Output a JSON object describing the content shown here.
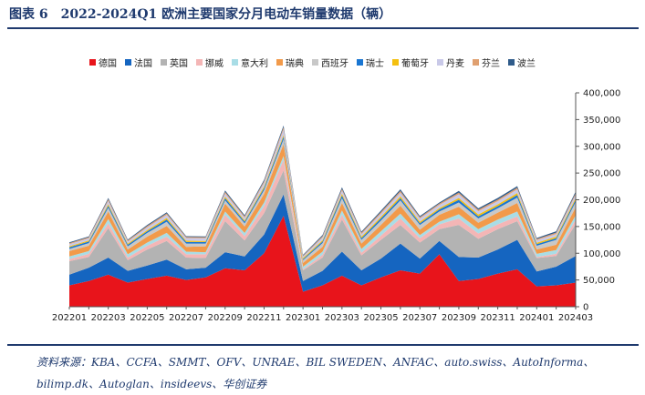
{
  "title": "图表 6　2022-2024Q1 欧洲主要国家分月电动车销量数据（辆）",
  "source": "资料来源：KBA、CCFA、SMMT、OFV、UNRAE、BIL SWEDEN、ANFAC、auto.swiss、AutoInforma、bilimp.dk、Autoglan、insideevs、华创证券",
  "chart_data": {
    "type": "area",
    "stacked": true,
    "x": [
      "202201",
      "202202",
      "202203",
      "202204",
      "202205",
      "202206",
      "202207",
      "202208",
      "202209",
      "202210",
      "202211",
      "202212",
      "202301",
      "202302",
      "202303",
      "202304",
      "202305",
      "202306",
      "202307",
      "202308",
      "202309",
      "202310",
      "202311",
      "202312",
      "202401",
      "202402",
      "202403"
    ],
    "x_tick_labels": [
      "202201",
      "202203",
      "202205",
      "202207",
      "202209",
      "202211",
      "202301",
      "202303",
      "202305",
      "202307",
      "202309",
      "202311",
      "202401",
      "202403"
    ],
    "ylim": [
      0,
      400000
    ],
    "y_tick_labels": [
      "0",
      "50,000",
      "100,000",
      "150,000",
      "200,000",
      "250,000",
      "300,000",
      "350,000",
      "400,000"
    ],
    "legend_position": "top",
    "series": [
      {
        "name": "德国",
        "color": "#e8141b",
        "values": [
          40000,
          48000,
          60000,
          45000,
          52000,
          58000,
          50000,
          55000,
          72000,
          68000,
          100000,
          170000,
          28000,
          40000,
          58000,
          40000,
          55000,
          68000,
          62000,
          98000,
          48000,
          52000,
          62000,
          70000,
          38000,
          40000,
          45000
        ]
      },
      {
        "name": "法国",
        "color": "#1565c0",
        "values": [
          20000,
          25000,
          32000,
          22000,
          25000,
          30000,
          20000,
          18000,
          30000,
          26000,
          35000,
          40000,
          20000,
          27000,
          45000,
          28000,
          35000,
          50000,
          28000,
          25000,
          45000,
          40000,
          45000,
          55000,
          28000,
          35000,
          50000
        ]
      },
      {
        "name": "英国",
        "color": "#b3b3b3",
        "values": [
          25000,
          20000,
          55000,
          20000,
          30000,
          35000,
          22000,
          18000,
          58000,
          30000,
          40000,
          45000,
          20000,
          25000,
          60000,
          28000,
          35000,
          35000,
          30000,
          22000,
          60000,
          35000,
          38000,
          35000,
          25000,
          20000,
          60000
        ]
      },
      {
        "name": "挪威",
        "color": "#f4b6b6",
        "values": [
          4000,
          6000,
          9000,
          5000,
          7000,
          8000,
          6000,
          7000,
          12000,
          8000,
          13000,
          20000,
          2000,
          5000,
          9000,
          5000,
          8000,
          12000,
          8000,
          9000,
          12000,
          10000,
          9000,
          9000,
          2000,
          4000,
          8000
        ]
      },
      {
        "name": "意大利",
        "color": "#a9dde6",
        "values": [
          5000,
          5000,
          8000,
          6000,
          6000,
          7000,
          5000,
          4000,
          6000,
          6000,
          7000,
          7000,
          5000,
          6000,
          8000,
          7000,
          8000,
          9000,
          6000,
          5000,
          8000,
          8000,
          9000,
          9000,
          6000,
          7000,
          8000
        ]
      },
      {
        "name": "瑞典",
        "color": "#f29a4a",
        "values": [
          10000,
          10000,
          14000,
          9000,
          11000,
          13000,
          9000,
          11000,
          15000,
          12000,
          16000,
          22000,
          7000,
          9000,
          14000,
          10000,
          12000,
          15000,
          10000,
          13000,
          14000,
          12000,
          13000,
          16000,
          8000,
          10000,
          15000
        ]
      },
      {
        "name": "西班牙",
        "color": "#c8c8c8",
        "values": [
          4000,
          5000,
          7000,
          6000,
          7000,
          8000,
          6000,
          5000,
          6000,
          6000,
          7000,
          9000,
          5000,
          7000,
          9000,
          7000,
          8000,
          10000,
          9000,
          6000,
          8000,
          8000,
          8000,
          10000,
          7000,
          9000,
          10000
        ]
      },
      {
        "name": "瑞士",
        "color": "#1976d2",
        "values": [
          3000,
          3000,
          4000,
          3000,
          3000,
          4000,
          3000,
          3000,
          4000,
          3000,
          4000,
          5000,
          2000,
          3000,
          5000,
          3000,
          4000,
          4000,
          3000,
          4000,
          5000,
          4000,
          4000,
          5000,
          3000,
          3000,
          4000
        ]
      },
      {
        "name": "葡萄牙",
        "color": "#f4c010",
        "values": [
          2000,
          2000,
          3000,
          2000,
          2500,
          3000,
          2500,
          2000,
          3000,
          2500,
          3000,
          3500,
          2000,
          2500,
          3500,
          3000,
          3000,
          3500,
          3000,
          2500,
          3500,
          3500,
          3500,
          3500,
          2500,
          3000,
          3500
        ]
      },
      {
        "name": "丹麦",
        "color": "#c9c9e8",
        "values": [
          4000,
          4000,
          6000,
          4000,
          5000,
          6000,
          5000,
          5000,
          6000,
          5000,
          7000,
          10000,
          3000,
          5000,
          6000,
          5000,
          6000,
          7000,
          6000,
          6000,
          7000,
          6000,
          6000,
          7000,
          5000,
          5000,
          6000
        ]
      },
      {
        "name": "芬兰",
        "color": "#e0a070",
        "values": [
          2000,
          2000,
          3000,
          2000,
          2500,
          2500,
          2000,
          2000,
          3000,
          2500,
          3000,
          4000,
          1500,
          2500,
          3000,
          2500,
          3000,
          3000,
          2500,
          2500,
          3000,
          3000,
          3000,
          3000,
          2000,
          2500,
          3000
        ]
      },
      {
        "name": "波兰",
        "color": "#2f5b8a",
        "values": [
          1500,
          1500,
          2500,
          1500,
          2000,
          2000,
          1500,
          1500,
          2500,
          2000,
          2500,
          3500,
          1500,
          2000,
          3000,
          2000,
          2500,
          3000,
          2000,
          2000,
          3000,
          2500,
          3000,
          3000,
          2000,
          2500,
          3000
        ]
      }
    ]
  }
}
